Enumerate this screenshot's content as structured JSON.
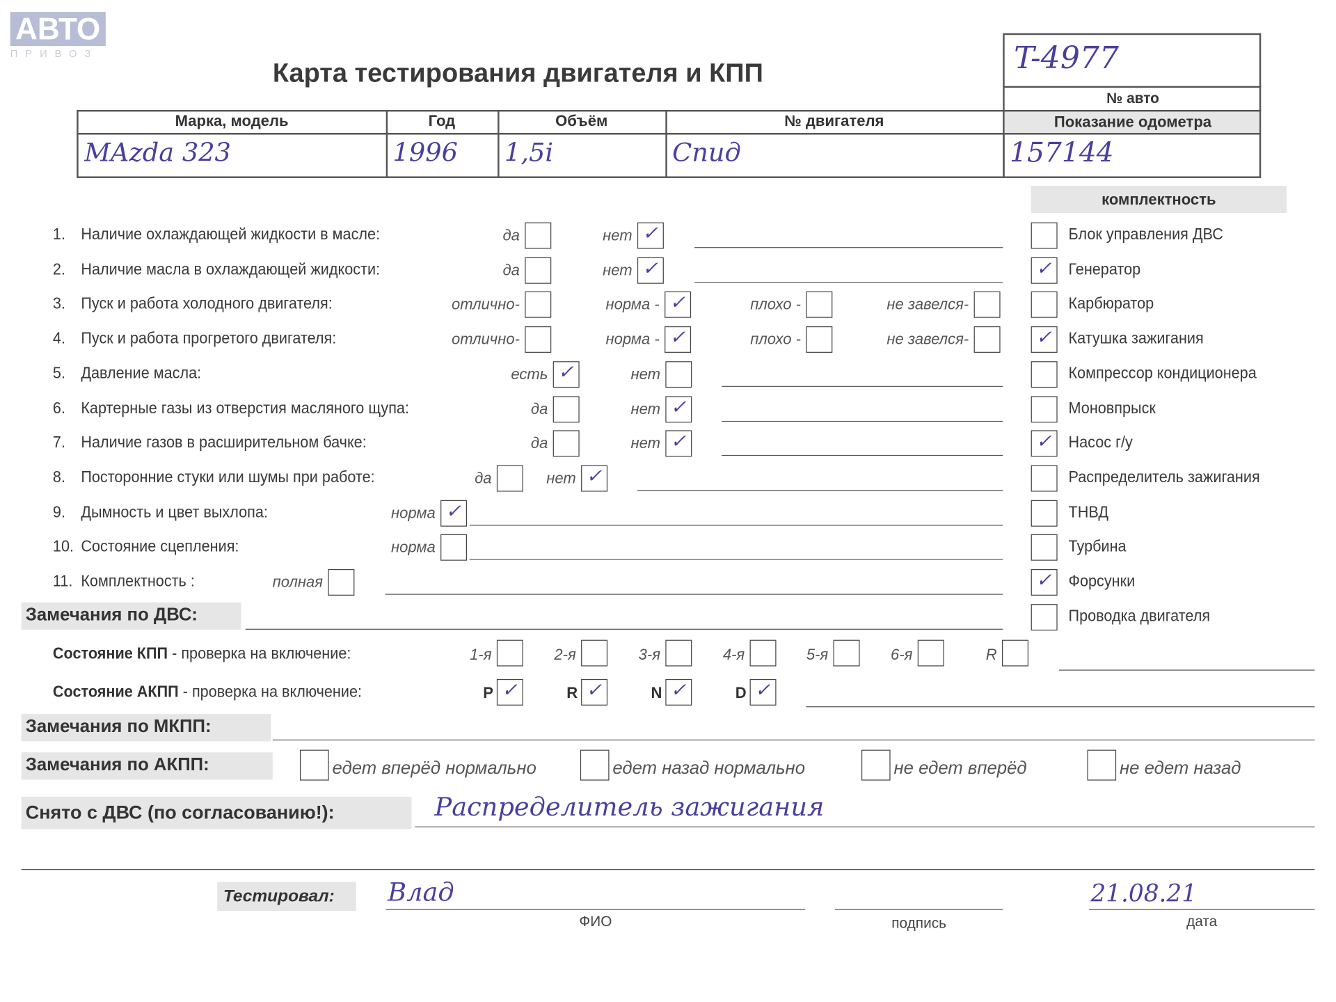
{
  "logo": {
    "main": "АВТО",
    "sub": "ПРИВОЗ",
    "tm": "™"
  },
  "title": "Карта тестирования двигателя  и КПП",
  "header_table": {
    "columns": [
      "Марка, модель",
      "Год",
      "Объём",
      "№ двигателя"
    ],
    "values": [
      "MAzda 323",
      "1996",
      "1,5i",
      "Спид"
    ]
  },
  "car_box": {
    "car_number": "T-4977",
    "car_number_label": "№ авто",
    "odometer_label": "Показание одометра",
    "odometer": "157144"
  },
  "completeness": {
    "title": "комплектность",
    "items": [
      {
        "label": "Блок управления ДВС",
        "checked": false
      },
      {
        "label": "Генератор",
        "checked": true
      },
      {
        "label": "Карбюратор",
        "checked": false
      },
      {
        "label": "Катушка зажигания",
        "checked": true
      },
      {
        "label": "Компрессор кондиционера",
        "checked": false
      },
      {
        "label": "Моновпрыск",
        "checked": false
      },
      {
        "label": "Насос г/у",
        "checked": true
      },
      {
        "label": "Распределитель зажигания",
        "checked": false
      },
      {
        "label": "ТНВД",
        "checked": false
      },
      {
        "label": "Турбина",
        "checked": false
      },
      {
        "label": "Форсунки",
        "checked": true
      },
      {
        "label": "Проводка двигателя",
        "checked": false
      }
    ]
  },
  "checks": [
    {
      "num": "1.",
      "label": "Наличие охлаждающей жидкости в масле:",
      "options": [
        {
          "label": "да",
          "checked": false
        },
        {
          "label": "нет",
          "checked": true
        }
      ]
    },
    {
      "num": "2.",
      "label": "Наличие масла в охлаждающей жидкости:",
      "options": [
        {
          "label": "да",
          "checked": false
        },
        {
          "label": "нет",
          "checked": true
        }
      ]
    },
    {
      "num": "3.",
      "label": "Пуск и работа холодного двигателя:",
      "options": [
        {
          "label": "отлично-",
          "checked": false
        },
        {
          "label": "норма -",
          "checked": true
        },
        {
          "label": "плохо -",
          "checked": false
        },
        {
          "label": "не завелся-",
          "checked": false
        }
      ]
    },
    {
      "num": "4.",
      "label": "Пуск и работа прогретого двигателя:",
      "options": [
        {
          "label": "отлично-",
          "checked": false
        },
        {
          "label": "норма -",
          "checked": true
        },
        {
          "label": "плохо -",
          "checked": false
        },
        {
          "label": "не завелся-",
          "checked": false
        }
      ]
    },
    {
      "num": "5.",
      "label": "Давление масла:",
      "options": [
        {
          "label": "есть",
          "checked": true
        },
        {
          "label": "нет",
          "checked": false
        }
      ]
    },
    {
      "num": "6.",
      "label": "Картерные газы из отверстия масляного щупа:",
      "options": [
        {
          "label": "да",
          "checked": false
        },
        {
          "label": "нет",
          "checked": true
        }
      ]
    },
    {
      "num": "7.",
      "label": "Наличие газов в расширительном бачке:",
      "options": [
        {
          "label": "да",
          "checked": false
        },
        {
          "label": "нет",
          "checked": true
        }
      ]
    },
    {
      "num": "8.",
      "label": "Посторонние стуки или шумы при работе:",
      "options": [
        {
          "label": "да",
          "checked": false
        },
        {
          "label": "нет",
          "checked": true
        }
      ]
    },
    {
      "num": "9.",
      "label": "Дымность и цвет выхлопа:",
      "options": [
        {
          "label": "норма",
          "checked": true
        }
      ]
    },
    {
      "num": "10.",
      "label": "Состояние сцепления:",
      "options": [
        {
          "label": "норма",
          "checked": false
        }
      ]
    },
    {
      "num": "11.",
      "label": "Комплектность :",
      "options": [
        {
          "label": "полная",
          "checked": false
        }
      ]
    }
  ],
  "engine_remarks_label": "Замечания по ДВС:",
  "manual": {
    "label_bold": "Состояние КПП",
    "label_rest": " - проверка на включение:",
    "gears": [
      {
        "label": "1-я",
        "checked": false
      },
      {
        "label": "2-я",
        "checked": false
      },
      {
        "label": "3-я",
        "checked": false
      },
      {
        "label": "4-я",
        "checked": false
      },
      {
        "label": "5-я",
        "checked": false
      },
      {
        "label": "6-я",
        "checked": false
      },
      {
        "label": "R",
        "checked": false
      }
    ]
  },
  "auto": {
    "label_bold": "Состояние АКПП",
    "label_rest": " - проверка на включение:",
    "gears": [
      {
        "label": "P",
        "checked": true
      },
      {
        "label": "R",
        "checked": true
      },
      {
        "label": "N",
        "checked": true
      },
      {
        "label": "D",
        "checked": true
      }
    ]
  },
  "manual_remarks_label": "Замечания по МКПП:",
  "auto_remarks": {
    "label": "Замечания по АКПП:",
    "options": [
      {
        "label": "едет вперёд нормально",
        "checked": false
      },
      {
        "label": "едет назад нормально",
        "checked": false
      },
      {
        "label": "не едет вперёд",
        "checked": false
      },
      {
        "label": "не едет назад",
        "checked": false
      }
    ]
  },
  "removed": {
    "label": "Снято с ДВС (по согласованию!):",
    "value": "Распределитель зажигания"
  },
  "tested": {
    "label": "Тестировал:",
    "name": "Влад",
    "name_caption": "ФИО",
    "signature_caption": "подпись",
    "date": "21.08.21",
    "date_caption": "дата"
  }
}
